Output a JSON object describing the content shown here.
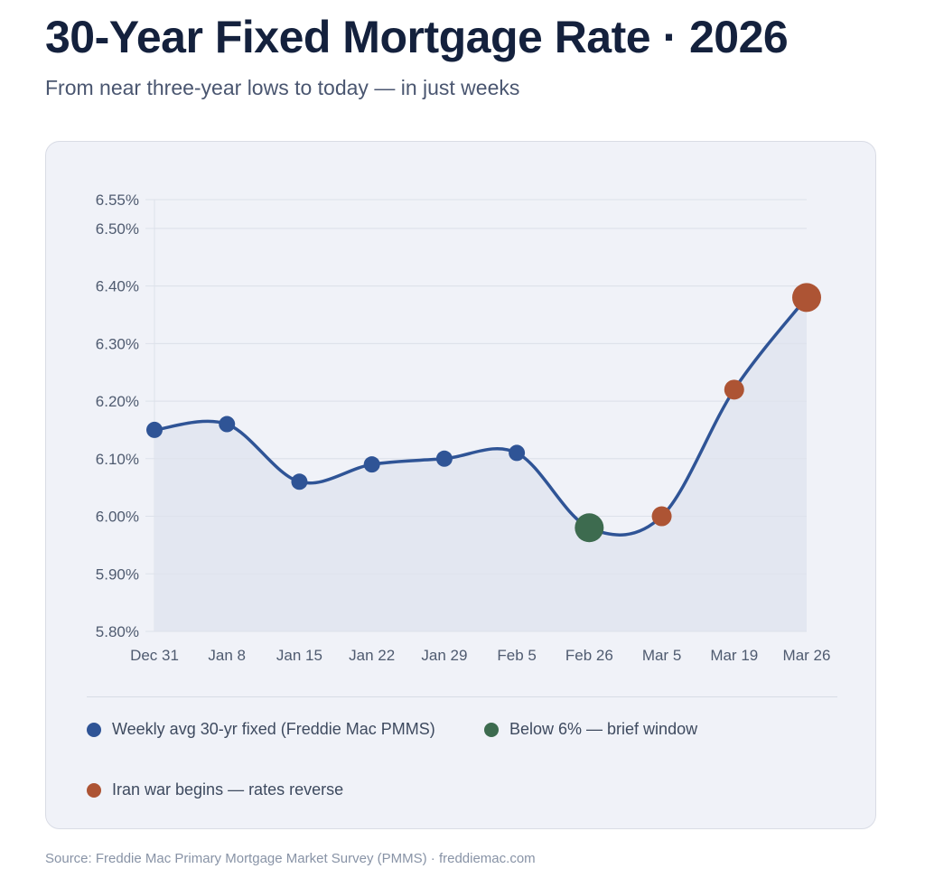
{
  "header": {
    "title": "30-Year Fixed Mortgage Rate · 2026",
    "subtitle": "From near three-year lows to today — in just weeks"
  },
  "legend": [
    {
      "label": "Weekly avg 30-yr fixed (Freddie Mac PMMS)",
      "color": "#2f5496"
    },
    {
      "label": "Below 6% — brief window",
      "color": "#3d6b4f"
    },
    {
      "label": "Iran war begins — rates reverse",
      "color": "#ad5434"
    }
  ],
  "footer": {
    "source": "Source: Freddie Mac Primary Mortgage Market Survey (PMMS) · freddiemac.com"
  },
  "colors": {
    "line": "#2f5496",
    "area": "#e3e7f1",
    "below6": "#3d6b4f",
    "war": "#ad5434",
    "grid": "#dde1ea"
  },
  "chart_data": {
    "type": "line",
    "title": "30-Year Fixed Mortgage Rate · 2026",
    "subtitle": "From near three-year lows to today — in just weeks",
    "xlabel": "",
    "ylabel": "",
    "categories": [
      "Dec 31",
      "Jan 8",
      "Jan 15",
      "Jan 22",
      "Jan 29",
      "Feb 5",
      "Feb 26",
      "Mar 5",
      "Mar 19",
      "Mar 26"
    ],
    "series": [
      {
        "name": "Weekly avg 30-yr fixed (Freddie Mac PMMS)",
        "values": [
          6.15,
          6.16,
          6.06,
          6.09,
          6.1,
          6.11,
          5.98,
          6.0,
          6.22,
          6.38
        ]
      }
    ],
    "point_highlights": [
      {
        "index": 6,
        "category": "Feb 26",
        "value": 5.98,
        "label": "Below 6% — brief window",
        "color": "#3d6b4f",
        "size": "large"
      },
      {
        "index": 7,
        "category": "Mar 5",
        "value": 6.0,
        "label": "Iran war begins — rates reverse",
        "color": "#ad5434",
        "size": "normal"
      },
      {
        "index": 8,
        "category": "Mar 19",
        "value": 6.22,
        "label": "Iran war begins — rates reverse",
        "color": "#ad5434",
        "size": "normal"
      },
      {
        "index": 9,
        "category": "Mar 26",
        "value": 6.38,
        "label": "Iran war begins — rates reverse",
        "color": "#ad5434",
        "size": "large"
      }
    ],
    "yticks": [
      5.8,
      5.9,
      6.0,
      6.1,
      6.2,
      6.3,
      6.4,
      6.5,
      6.55
    ],
    "ytick_labels": [
      "5.80%",
      "5.90%",
      "6.00%",
      "6.10%",
      "6.20%",
      "6.30%",
      "6.40%",
      "6.50%",
      "6.55%"
    ],
    "ylim": [
      5.8,
      6.55
    ],
    "grid": true,
    "legend_position": "bottom",
    "area_fill": true,
    "smooth": true
  }
}
